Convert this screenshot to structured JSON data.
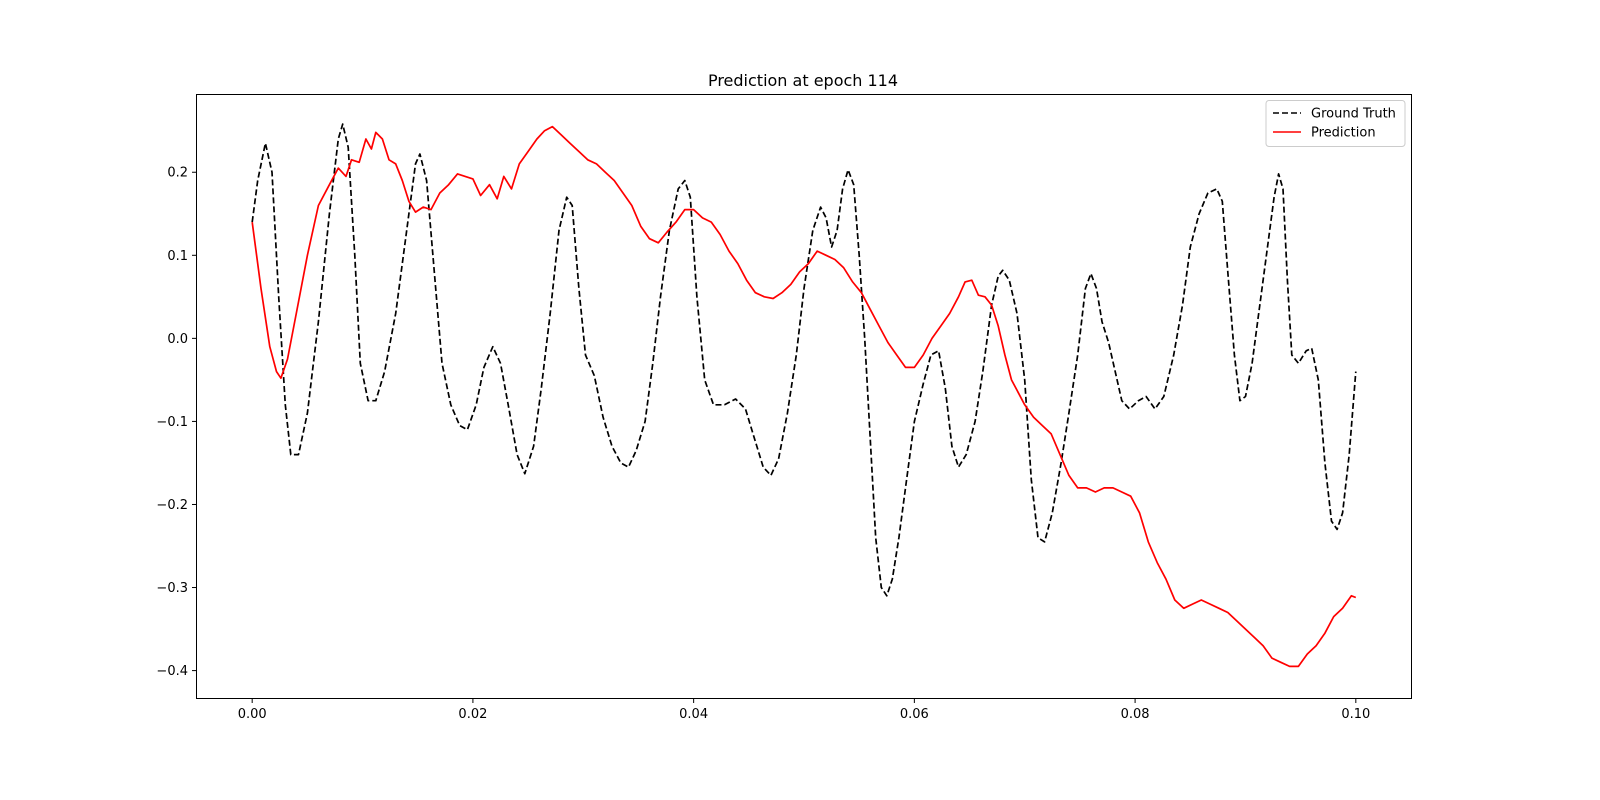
{
  "chart_data": {
    "type": "line",
    "title": "Prediction at epoch 114",
    "xlabel": "",
    "ylabel": "",
    "xlim": [
      -0.005,
      0.105
    ],
    "ylim": [
      -0.433,
      0.293
    ],
    "xticks": [
      0.0,
      0.02,
      0.04,
      0.06,
      0.08,
      0.1
    ],
    "xtick_labels": [
      "0.00",
      "0.02",
      "0.04",
      "0.06",
      "0.08",
      "0.10"
    ],
    "yticks": [
      0.2,
      0.1,
      0.0,
      -0.1,
      -0.2,
      -0.3,
      -0.4
    ],
    "ytick_labels": [
      "0.2",
      "0.1",
      "0.0",
      "−0.1",
      "−0.2",
      "−0.3",
      "−0.4"
    ],
    "grid": false,
    "legend_position": "top-right",
    "series": [
      {
        "name": "Ground Truth",
        "color": "#000000",
        "style": "dashed",
        "points": [
          [
            0.0,
            0.14
          ],
          [
            0.0005,
            0.19
          ],
          [
            0.0012,
            0.235
          ],
          [
            0.0018,
            0.2
          ],
          [
            0.0024,
            0.05
          ],
          [
            0.003,
            -0.08
          ],
          [
            0.0035,
            -0.14
          ],
          [
            0.0042,
            -0.14
          ],
          [
            0.005,
            -0.09
          ],
          [
            0.006,
            0.02
          ],
          [
            0.007,
            0.15
          ],
          [
            0.0078,
            0.24
          ],
          [
            0.0082,
            0.258
          ],
          [
            0.0087,
            0.23
          ],
          [
            0.0093,
            0.1
          ],
          [
            0.0098,
            -0.03
          ],
          [
            0.0105,
            -0.075
          ],
          [
            0.0112,
            -0.075
          ],
          [
            0.012,
            -0.04
          ],
          [
            0.013,
            0.03
          ],
          [
            0.014,
            0.13
          ],
          [
            0.0148,
            0.21
          ],
          [
            0.0152,
            0.222
          ],
          [
            0.0158,
            0.19
          ],
          [
            0.0165,
            0.08
          ],
          [
            0.0172,
            -0.03
          ],
          [
            0.018,
            -0.08
          ],
          [
            0.0188,
            -0.105
          ],
          [
            0.0195,
            -0.11
          ],
          [
            0.0203,
            -0.08
          ],
          [
            0.021,
            -0.035
          ],
          [
            0.0218,
            -0.01
          ],
          [
            0.0225,
            -0.03
          ],
          [
            0.0232,
            -0.08
          ],
          [
            0.024,
            -0.14
          ],
          [
            0.0247,
            -0.163
          ],
          [
            0.0255,
            -0.13
          ],
          [
            0.0262,
            -0.06
          ],
          [
            0.027,
            0.03
          ],
          [
            0.0278,
            0.13
          ],
          [
            0.0285,
            0.17
          ],
          [
            0.029,
            0.16
          ],
          [
            0.0296,
            0.06
          ],
          [
            0.0302,
            -0.02
          ],
          [
            0.031,
            -0.045
          ],
          [
            0.0318,
            -0.095
          ],
          [
            0.0326,
            -0.13
          ],
          [
            0.0334,
            -0.15
          ],
          [
            0.0341,
            -0.155
          ],
          [
            0.0348,
            -0.135
          ],
          [
            0.0356,
            -0.1
          ],
          [
            0.0363,
            -0.03
          ],
          [
            0.037,
            0.05
          ],
          [
            0.0378,
            0.13
          ],
          [
            0.0386,
            0.18
          ],
          [
            0.0392,
            0.19
          ],
          [
            0.0397,
            0.17
          ],
          [
            0.0403,
            0.05
          ],
          [
            0.041,
            -0.05
          ],
          [
            0.0418,
            -0.08
          ],
          [
            0.0428,
            -0.08
          ],
          [
            0.0438,
            -0.073
          ],
          [
            0.0447,
            -0.085
          ],
          [
            0.0455,
            -0.12
          ],
          [
            0.0463,
            -0.155
          ],
          [
            0.047,
            -0.165
          ],
          [
            0.0477,
            -0.145
          ],
          [
            0.0485,
            -0.09
          ],
          [
            0.0493,
            -0.02
          ],
          [
            0.05,
            0.06
          ],
          [
            0.0508,
            0.13
          ],
          [
            0.0515,
            0.158
          ],
          [
            0.052,
            0.145
          ],
          [
            0.0525,
            0.11
          ],
          [
            0.053,
            0.13
          ],
          [
            0.0535,
            0.18
          ],
          [
            0.054,
            0.203
          ],
          [
            0.0545,
            0.185
          ],
          [
            0.055,
            0.1
          ],
          [
            0.0555,
            0.0
          ],
          [
            0.056,
            -0.12
          ],
          [
            0.0565,
            -0.24
          ],
          [
            0.057,
            -0.3
          ],
          [
            0.0575,
            -0.31
          ],
          [
            0.058,
            -0.29
          ],
          [
            0.0586,
            -0.24
          ],
          [
            0.0593,
            -0.17
          ],
          [
            0.06,
            -0.1
          ],
          [
            0.0608,
            -0.055
          ],
          [
            0.0615,
            -0.02
          ],
          [
            0.0622,
            -0.015
          ],
          [
            0.0628,
            -0.06
          ],
          [
            0.0634,
            -0.13
          ],
          [
            0.064,
            -0.155
          ],
          [
            0.0647,
            -0.14
          ],
          [
            0.0655,
            -0.1
          ],
          [
            0.0662,
            -0.04
          ],
          [
            0.067,
            0.04
          ],
          [
            0.0676,
            0.075
          ],
          [
            0.068,
            0.082
          ],
          [
            0.0686,
            0.07
          ],
          [
            0.0693,
            0.03
          ],
          [
            0.07,
            -0.05
          ],
          [
            0.0706,
            -0.17
          ],
          [
            0.0712,
            -0.24
          ],
          [
            0.0718,
            -0.245
          ],
          [
            0.0725,
            -0.21
          ],
          [
            0.0733,
            -0.15
          ],
          [
            0.074,
            -0.09
          ],
          [
            0.0748,
            -0.02
          ],
          [
            0.0755,
            0.06
          ],
          [
            0.076,
            0.078
          ],
          [
            0.0765,
            0.06
          ],
          [
            0.077,
            0.02
          ],
          [
            0.0776,
            -0.005
          ],
          [
            0.0782,
            -0.04
          ],
          [
            0.0788,
            -0.075
          ],
          [
            0.0795,
            -0.085
          ],
          [
            0.0803,
            -0.075
          ],
          [
            0.081,
            -0.07
          ],
          [
            0.0818,
            -0.085
          ],
          [
            0.0826,
            -0.07
          ],
          [
            0.0835,
            -0.02
          ],
          [
            0.0843,
            0.04
          ],
          [
            0.085,
            0.11
          ],
          [
            0.0858,
            0.15
          ],
          [
            0.0866,
            0.175
          ],
          [
            0.0874,
            0.18
          ],
          [
            0.0879,
            0.165
          ],
          [
            0.0884,
            0.08
          ],
          [
            0.089,
            -0.02
          ],
          [
            0.0895,
            -0.075
          ],
          [
            0.09,
            -0.07
          ],
          [
            0.0906,
            -0.03
          ],
          [
            0.0913,
            0.04
          ],
          [
            0.092,
            0.11
          ],
          [
            0.0926,
            0.17
          ],
          [
            0.093,
            0.198
          ],
          [
            0.0934,
            0.18
          ],
          [
            0.0938,
            0.07
          ],
          [
            0.0942,
            -0.02
          ],
          [
            0.0948,
            -0.03
          ],
          [
            0.0955,
            -0.015
          ],
          [
            0.096,
            -0.012
          ],
          [
            0.0966,
            -0.05
          ],
          [
            0.0972,
            -0.15
          ],
          [
            0.0978,
            -0.22
          ],
          [
            0.0983,
            -0.23
          ],
          [
            0.0988,
            -0.21
          ],
          [
            0.0994,
            -0.14
          ],
          [
            0.1,
            -0.04
          ]
        ]
      },
      {
        "name": "Prediction",
        "color": "#ff0000",
        "style": "solid",
        "points": [
          [
            0.0,
            0.14
          ],
          [
            0.0008,
            0.06
          ],
          [
            0.0016,
            -0.01
          ],
          [
            0.0022,
            -0.04
          ],
          [
            0.0026,
            -0.048
          ],
          [
            0.0032,
            -0.025
          ],
          [
            0.004,
            0.03
          ],
          [
            0.005,
            0.1
          ],
          [
            0.006,
            0.16
          ],
          [
            0.007,
            0.185
          ],
          [
            0.0078,
            0.205
          ],
          [
            0.0085,
            0.195
          ],
          [
            0.009,
            0.215
          ],
          [
            0.0097,
            0.212
          ],
          [
            0.0103,
            0.24
          ],
          [
            0.0108,
            0.228
          ],
          [
            0.0112,
            0.248
          ],
          [
            0.0118,
            0.24
          ],
          [
            0.0124,
            0.215
          ],
          [
            0.013,
            0.21
          ],
          [
            0.0136,
            0.19
          ],
          [
            0.0142,
            0.165
          ],
          [
            0.0148,
            0.152
          ],
          [
            0.0155,
            0.158
          ],
          [
            0.0162,
            0.155
          ],
          [
            0.017,
            0.175
          ],
          [
            0.0178,
            0.185
          ],
          [
            0.0186,
            0.198
          ],
          [
            0.0193,
            0.195
          ],
          [
            0.02,
            0.192
          ],
          [
            0.0207,
            0.172
          ],
          [
            0.0215,
            0.185
          ],
          [
            0.0222,
            0.168
          ],
          [
            0.0228,
            0.195
          ],
          [
            0.0235,
            0.18
          ],
          [
            0.0242,
            0.21
          ],
          [
            0.025,
            0.225
          ],
          [
            0.0258,
            0.24
          ],
          [
            0.0265,
            0.25
          ],
          [
            0.0272,
            0.255
          ],
          [
            0.028,
            0.245
          ],
          [
            0.0288,
            0.235
          ],
          [
            0.0296,
            0.225
          ],
          [
            0.0304,
            0.215
          ],
          [
            0.0312,
            0.21
          ],
          [
            0.032,
            0.2
          ],
          [
            0.0328,
            0.19
          ],
          [
            0.0336,
            0.175
          ],
          [
            0.0344,
            0.16
          ],
          [
            0.0352,
            0.135
          ],
          [
            0.036,
            0.12
          ],
          [
            0.0368,
            0.115
          ],
          [
            0.0376,
            0.128
          ],
          [
            0.0384,
            0.14
          ],
          [
            0.0392,
            0.155
          ],
          [
            0.04,
            0.155
          ],
          [
            0.0408,
            0.145
          ],
          [
            0.0416,
            0.14
          ],
          [
            0.0424,
            0.125
          ],
          [
            0.0432,
            0.105
          ],
          [
            0.044,
            0.09
          ],
          [
            0.0448,
            0.07
          ],
          [
            0.0456,
            0.055
          ],
          [
            0.0464,
            0.05
          ],
          [
            0.0472,
            0.048
          ],
          [
            0.048,
            0.055
          ],
          [
            0.0488,
            0.065
          ],
          [
            0.0496,
            0.08
          ],
          [
            0.0504,
            0.09
          ],
          [
            0.0512,
            0.105
          ],
          [
            0.052,
            0.1
          ],
          [
            0.0528,
            0.095
          ],
          [
            0.0536,
            0.085
          ],
          [
            0.0544,
            0.068
          ],
          [
            0.0552,
            0.055
          ],
          [
            0.056,
            0.035
          ],
          [
            0.0568,
            0.015
          ],
          [
            0.0576,
            -0.005
          ],
          [
            0.0584,
            -0.02
          ],
          [
            0.0592,
            -0.035
          ],
          [
            0.06,
            -0.035
          ],
          [
            0.0608,
            -0.02
          ],
          [
            0.0616,
            0.0
          ],
          [
            0.0624,
            0.015
          ],
          [
            0.0632,
            0.03
          ],
          [
            0.064,
            0.05
          ],
          [
            0.0646,
            0.068
          ],
          [
            0.0652,
            0.07
          ],
          [
            0.0658,
            0.052
          ],
          [
            0.0664,
            0.05
          ],
          [
            0.067,
            0.04
          ],
          [
            0.0676,
            0.015
          ],
          [
            0.0682,
            -0.02
          ],
          [
            0.0688,
            -0.05
          ],
          [
            0.0694,
            -0.065
          ],
          [
            0.07,
            -0.08
          ],
          [
            0.0708,
            -0.095
          ],
          [
            0.0716,
            -0.105
          ],
          [
            0.0724,
            -0.115
          ],
          [
            0.0732,
            -0.14
          ],
          [
            0.074,
            -0.165
          ],
          [
            0.0748,
            -0.18
          ],
          [
            0.0756,
            -0.18
          ],
          [
            0.0764,
            -0.185
          ],
          [
            0.0772,
            -0.18
          ],
          [
            0.078,
            -0.18
          ],
          [
            0.0788,
            -0.185
          ],
          [
            0.0796,
            -0.19
          ],
          [
            0.0804,
            -0.21
          ],
          [
            0.0812,
            -0.245
          ],
          [
            0.082,
            -0.27
          ],
          [
            0.0828,
            -0.29
          ],
          [
            0.0836,
            -0.315
          ],
          [
            0.0844,
            -0.325
          ],
          [
            0.0852,
            -0.32
          ],
          [
            0.086,
            -0.315
          ],
          [
            0.0868,
            -0.32
          ],
          [
            0.0876,
            -0.325
          ],
          [
            0.0884,
            -0.33
          ],
          [
            0.0892,
            -0.34
          ],
          [
            0.09,
            -0.35
          ],
          [
            0.0908,
            -0.36
          ],
          [
            0.0916,
            -0.37
          ],
          [
            0.0924,
            -0.385
          ],
          [
            0.0932,
            -0.39
          ],
          [
            0.094,
            -0.395
          ],
          [
            0.0948,
            -0.395
          ],
          [
            0.0956,
            -0.38
          ],
          [
            0.0964,
            -0.37
          ],
          [
            0.0972,
            -0.355
          ],
          [
            0.098,
            -0.335
          ],
          [
            0.0988,
            -0.325
          ],
          [
            0.0996,
            -0.31
          ],
          [
            0.1,
            -0.312
          ]
        ]
      }
    ]
  }
}
